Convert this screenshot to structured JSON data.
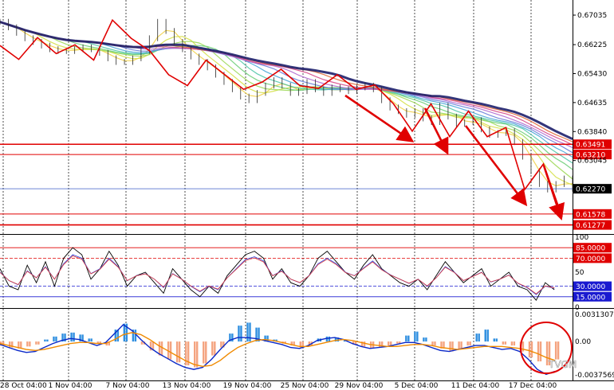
{
  "colors": {
    "background": "#ffffff",
    "grid": "#000000",
    "resistance": "#e00000",
    "support": "#e00000",
    "current_price": "#000000",
    "price_line": "#3b5ec8",
    "zigzag": "#e00000",
    "ribbon_slow": "#1d1f6b",
    "stoch_k": "#000000",
    "stoch_d": "#3a50e0",
    "stoch_signal": "#e03a3a",
    "osc_blue": "#2f8fe0",
    "osc_orange": "#f4a37f",
    "macd_main": "#0a28c8",
    "macd_signal": "#f08a00",
    "level_red": "#e00000",
    "level_blue": "#1a1ad0"
  },
  "chart_data": [
    {
      "type": "line",
      "panel": "price",
      "x_labels": [
        "28 Oct 04:00",
        "1 Nov 04:00",
        "7 Nov 04:00",
        "13 Nov 04:00",
        "19 Nov 04:00",
        "25 Nov 04:00",
        "29 Nov 04:00",
        "5 Dec 04:00",
        "11 Dec 04:00",
        "17 Dec 04:00"
      ],
      "y_ticks": [
        "0.67035",
        "0.66225",
        "0.65430",
        "0.64635",
        "0.63840",
        "0.63045"
      ],
      "ylim": [
        0.6105,
        0.6745
      ],
      "horizontal_levels": [
        {
          "label": "0.63491",
          "value": 0.63491
        },
        {
          "label": "0.63210",
          "value": 0.6321
        },
        {
          "label": "0.61578",
          "value": 0.61578
        },
        {
          "label": "0.61277",
          "value": 0.61277
        }
      ],
      "current_price": {
        "label": "0.62270",
        "value": 0.6227
      },
      "series": [
        {
          "values": [
            0.6685,
            0.667,
            0.6655,
            0.664,
            0.663,
            0.662,
            0.661,
            0.6605,
            0.6605,
            0.661,
            0.6615,
            0.661,
            0.66,
            0.6585,
            0.6575,
            0.6575,
            0.6585,
            0.6605,
            0.664,
            0.6685,
            0.666,
            0.663,
            0.661,
            0.659,
            0.6575,
            0.656,
            0.654,
            0.652,
            0.65,
            0.648,
            0.647,
            0.649,
            0.651,
            0.6525,
            0.651,
            0.649,
            0.6495,
            0.652,
            0.65,
            0.649,
            0.6505,
            0.65,
            0.6495,
            0.6505,
            0.651,
            0.65,
            0.647,
            0.645,
            0.644,
            0.643,
            0.644,
            0.642,
            0.641,
            0.6455,
            0.6425,
            0.6405,
            0.641,
            0.6415,
            0.639,
            0.6375,
            0.638,
            0.6385,
            0.6355,
            0.6315,
            0.6275,
            0.624,
            0.6225,
            0.624,
            0.6255,
            0.6227
          ]
        },
        {
          "name": "",
          "role": "zigzag",
          "values": [
            0.662,
            0.6582,
            0.6642,
            0.6598,
            0.6622,
            0.658,
            0.669,
            0.664,
            0.6605,
            0.654,
            0.651,
            0.658,
            0.654,
            0.65,
            0.652,
            0.6555,
            0.651,
            0.6502,
            0.654,
            0.65,
            0.6512,
            0.646,
            0.6385,
            0.646,
            0.637,
            0.644,
            0.637,
            0.6395,
            0.6225,
            0.6295,
            0.615
          ]
        }
      ]
    },
    {
      "type": "line",
      "panel": "stochastic",
      "y_ticks": [
        "100",
        "50",
        "0"
      ],
      "ylim": [
        0,
        100
      ],
      "levels": [
        {
          "label": "85.0000",
          "value": 85
        },
        {
          "label": "70.0000",
          "value": 70
        },
        {
          "label": "30.0000",
          "value": 30
        },
        {
          "label": "15.0000",
          "value": 15
        }
      ],
      "series": [
        {
          "values": [
            55,
            30,
            25,
            60,
            35,
            65,
            30,
            70,
            85,
            75,
            40,
            55,
            80,
            60,
            30,
            45,
            50,
            35,
            20,
            55,
            40,
            25,
            15,
            30,
            20,
            45,
            60,
            75,
            80,
            70,
            40,
            55,
            35,
            30,
            45,
            70,
            80,
            65,
            50,
            40,
            60,
            75,
            55,
            45,
            35,
            30,
            40,
            25,
            45,
            65,
            50,
            35,
            45,
            55,
            30,
            40,
            50,
            30,
            25,
            10,
            35,
            25
          ]
        },
        {
          "values": [
            50,
            38,
            32,
            52,
            42,
            58,
            40,
            62,
            75,
            70,
            48,
            55,
            70,
            58,
            38,
            45,
            48,
            40,
            28,
            48,
            40,
            30,
            22,
            30,
            25,
            42,
            55,
            68,
            72,
            66,
            45,
            52,
            40,
            35,
            45,
            62,
            70,
            62,
            50,
            45,
            56,
            66,
            54,
            46,
            40,
            34,
            40,
            30,
            42,
            58,
            50,
            38,
            44,
            50,
            36,
            40,
            46,
            34,
            28,
            18,
            30,
            27
          ]
        }
      ]
    },
    {
      "type": "bar",
      "panel": "macd",
      "y_ticks": [
        "0.0031307",
        "0.00",
        "-0.0037569"
      ],
      "ylim": [
        -0.0037569,
        0.0031307
      ],
      "series": [
        {
          "values": [
            -0.0004,
            -0.0006,
            -0.0007,
            -0.0005,
            -0.0003,
            0.0002,
            0.0005,
            0.0008,
            0.0009,
            0.0007,
            0.0003,
            -0.0002,
            -0.0004,
            0.0012,
            0.0018,
            0.0012,
            -0.0003,
            -0.0009,
            -0.0014,
            -0.0018,
            -0.0021,
            -0.0024,
            -0.0026,
            -0.0022,
            -0.0014,
            -0.0006,
            0.0008,
            0.0016,
            0.0019,
            0.0014,
            0.0006,
            0.0002,
            -0.0002,
            -0.0004,
            -0.0006,
            -0.0004,
            0.0003,
            0.0005,
            0.0004,
            0.0001,
            -0.0003,
            -0.0005,
            -0.0007,
            -0.0006,
            -0.0004,
            -0.0002,
            0.0006,
            0.001,
            0.0004,
            -0.0004,
            -0.0007,
            -0.001,
            -0.0008,
            -0.0004,
            0.0008,
            0.0012,
            0.0003,
            -0.0003,
            -0.0004,
            -0.001,
            -0.0016,
            -0.002,
            -0.0024,
            -0.0018
          ]
        },
        {
          "values": [
            -0.0003,
            -0.0006,
            -0.0009,
            -0.0011,
            -0.001,
            -0.0006,
            -0.0002,
            0.0001,
            0.0003,
            0.0002,
            -0.0001,
            -0.0004,
            -0.0001,
            0.0008,
            0.0017,
            0.0011,
            0.0002,
            -0.0006,
            -0.0012,
            -0.0017,
            -0.0022,
            -0.0026,
            -0.0028,
            -0.0026,
            -0.0018,
            -0.0008,
            0.0001,
            0.0004,
            0.0004,
            0.0003,
            0.0001,
            -0.0001,
            -0.0003,
            -0.0006,
            -0.0007,
            -0.0004,
            0.0001,
            0.0003,
            0.0004,
            0.0002,
            -0.0002,
            -0.0005,
            -0.0007,
            -0.0006,
            -0.0005,
            -0.0003,
            -0.0001,
            -0.0001,
            -0.0003,
            -0.0006,
            -0.0009,
            -0.001,
            -0.0008,
            -0.0006,
            -0.0004,
            -0.0004,
            -0.0006,
            -0.0008,
            -0.0007,
            -0.001,
            -0.0018,
            -0.0028,
            -0.0033,
            -0.003
          ]
        },
        {
          "values": [
            -0.0002,
            -0.0004,
            -0.0006,
            -0.0008,
            -0.0009,
            -0.0008,
            -0.0006,
            -0.0004,
            -0.0002,
            -0.0001,
            -0.0001,
            -0.0002,
            -0.0002,
            0.0002,
            0.0007,
            0.0009,
            0.0007,
            0.0002,
            -0.0004,
            -0.0009,
            -0.0014,
            -0.0019,
            -0.0023,
            -0.0025,
            -0.0024,
            -0.0019,
            -0.0012,
            -0.0006,
            -0.0002,
            0.0001,
            0.0002,
            0.0001,
            -0.0001,
            -0.0003,
            -0.0005,
            -0.0005,
            -0.0003,
            -0.0001,
            0.0001,
            0.0002,
            0.0001,
            -0.0001,
            -0.0003,
            -0.0004,
            -0.0005,
            -0.0005,
            -0.0004,
            -0.0003,
            -0.0003,
            -0.0004,
            -0.0006,
            -0.0007,
            -0.0008,
            -0.0007,
            -0.0006,
            -0.0005,
            -0.0005,
            -0.0005,
            -0.0006,
            -0.0007,
            -0.0009,
            -0.0012,
            -0.0016,
            -0.0019
          ]
        }
      ]
    }
  ],
  "watermark": "TVGM"
}
